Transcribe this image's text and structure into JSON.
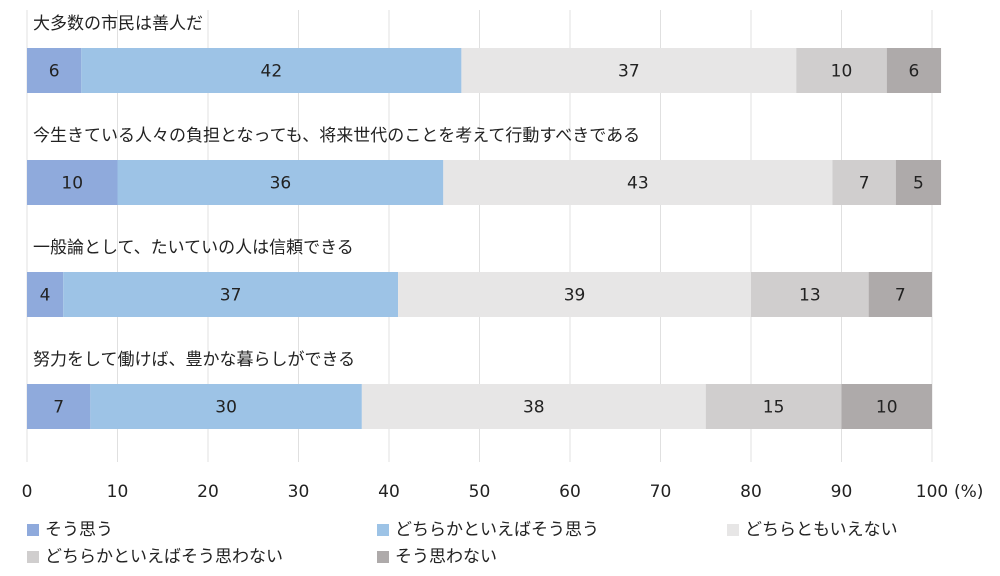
{
  "chart_data": {
    "type": "stacked_barh",
    "categories": [
      "大多数の市民は善人だ",
      "今生きている人々の負担となっても、将来世代のことを考えて行動すべきである",
      "一般論として、たいていの人は信頼できる",
      "努力をして働けば、豊かな暮らしができる"
    ],
    "series": [
      {
        "name": "そう思う",
        "color": "#8faadc",
        "values": [
          6,
          10,
          4,
          7
        ]
      },
      {
        "name": "どちらかといえばそう思う",
        "color": "#9dc3e6",
        "values": [
          42,
          36,
          37,
          30
        ]
      },
      {
        "name": "どちらともいえない",
        "color": "#e7e6e6",
        "values": [
          37,
          43,
          39,
          38
        ]
      },
      {
        "name": "どちらかといえばそう思わない",
        "color": "#d0cece",
        "values": [
          10,
          7,
          13,
          15
        ]
      },
      {
        "name": "そう思わない",
        "color": "#aeaaaa",
        "values": [
          6,
          5,
          7,
          10
        ]
      }
    ],
    "xlim": [
      0,
      100
    ],
    "xticks": [
      0,
      10,
      20,
      30,
      40,
      50,
      60,
      70,
      80,
      90,
      100
    ],
    "x_unit": "(%)",
    "grid": true,
    "legend": "bottom"
  }
}
